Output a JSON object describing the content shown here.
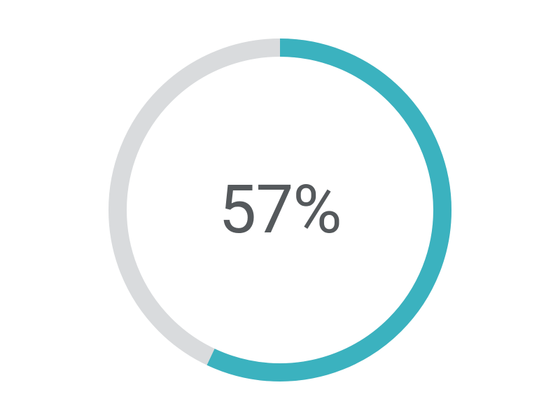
{
  "chart": {
    "type": "donut-progress",
    "value": 57,
    "label": "57%",
    "size": 490,
    "stroke_width": 26,
    "track_color": "#d9dbdd",
    "progress_color": "#3bb2bf",
    "background_color": "#ffffff",
    "text_color": "#55595c",
    "font_size": 96,
    "font_weight": 400,
    "linecap": "butt",
    "start_angle_deg": 0
  }
}
